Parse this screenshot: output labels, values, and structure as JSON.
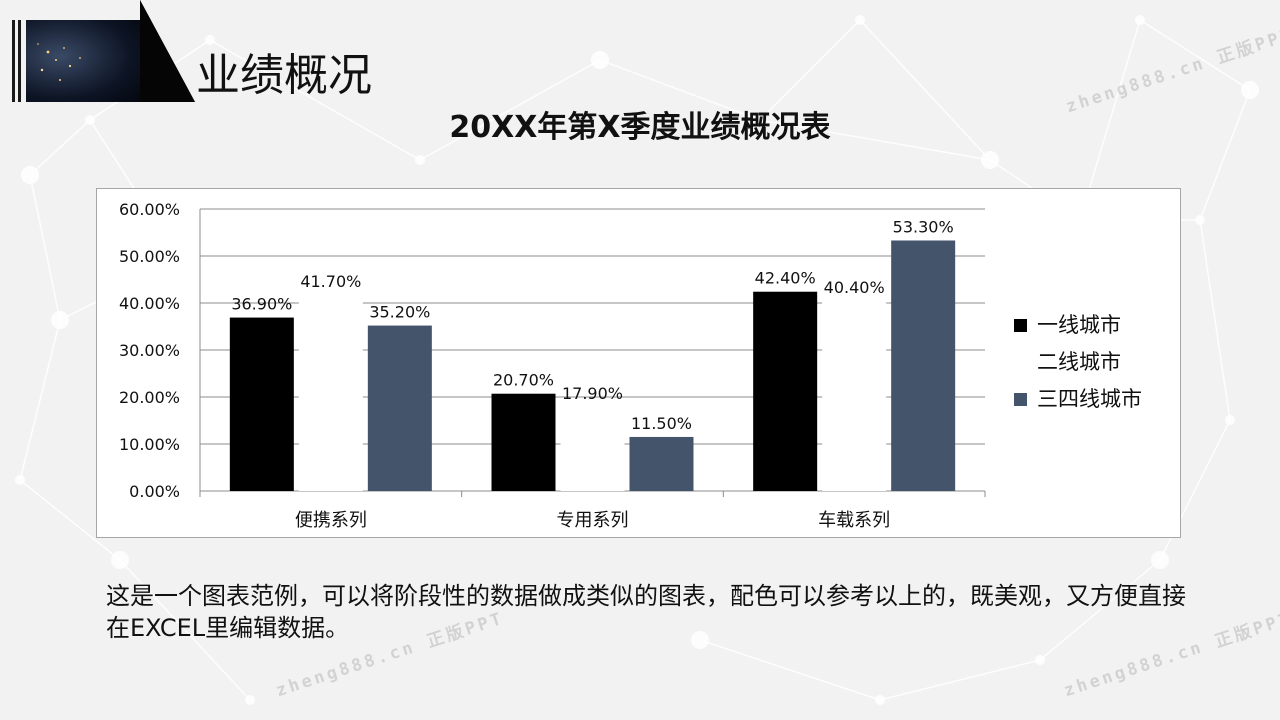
{
  "slide": {
    "title": "业绩概况",
    "description": "这是一个图表范例，可以将阶段性的数据做成类似的图表，配色可以参考以上的，既美观，又方便直接在EXCEL里编辑数据。",
    "watermark": "zheng888.cn 正版PPT"
  },
  "chart_data": {
    "type": "bar",
    "title": "20XX年第X季度业绩概况表",
    "categories": [
      "便携系列",
      "专用系列",
      "车载系列"
    ],
    "series": [
      {
        "name": "一线城市",
        "values": [
          36.9,
          20.7,
          42.4
        ],
        "labels": [
          "36.90%",
          "20.70%",
          "42.40%"
        ],
        "color": "#000000"
      },
      {
        "name": "二线城市",
        "values": [
          41.7,
          17.9,
          40.4
        ],
        "labels": [
          "41.70%",
          "17.90%",
          "40.40%"
        ],
        "color": "#ffffff"
      },
      {
        "name": "三四线城市",
        "values": [
          35.2,
          11.5,
          53.3
        ],
        "labels": [
          "35.20%",
          "11.50%",
          "53.30%"
        ],
        "color": "#44546a"
      }
    ],
    "ylim": [
      0,
      60
    ],
    "y_ticks": [
      "0.00%",
      "10.00%",
      "20.00%",
      "30.00%",
      "40.00%",
      "50.00%",
      "60.00%"
    ],
    "grid": true,
    "legend": "right"
  }
}
